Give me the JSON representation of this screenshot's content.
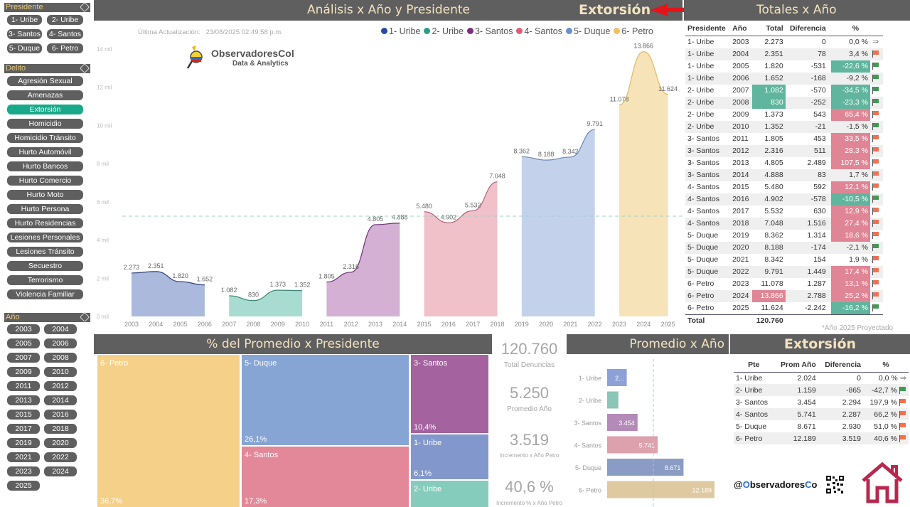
{
  "sidebar": {
    "presidente": {
      "title": "Presidente",
      "options": [
        "1- Uribe",
        "2- Uribe",
        "3- Santos",
        "4- Santos",
        "5- Duque",
        "6- Petro"
      ]
    },
    "delito": {
      "title": "Delito",
      "selected": "Extorsión",
      "options": [
        "Agresión Sexual",
        "Amenazas",
        "Extorsión",
        "Homicidio",
        "Homicidio Tránsito",
        "Hurto Automóvil",
        "Hurto Bancos",
        "Hurto Comercio",
        "Hurto Moto",
        "Hurto Persona",
        "Hurto Residencias",
        "Lesiones Personales",
        "Lesiones Tránsito",
        "Secuestro",
        "Terrorismo",
        "Violencia Familiar"
      ]
    },
    "anio": {
      "title": "Año",
      "options": [
        "2003",
        "2004",
        "2005",
        "2006",
        "2007",
        "2008",
        "2009",
        "2010",
        "2011",
        "2012",
        "2013",
        "2014",
        "2015",
        "2016",
        "2017",
        "2018",
        "2019",
        "2020",
        "2021",
        "2022",
        "2023",
        "2024",
        "2025"
      ]
    }
  },
  "header": {
    "title": "Análisis x Año y Presidente",
    "crime": "Extorsión",
    "totals_title": "Totales x Año"
  },
  "update": {
    "label": "Última Actualización:",
    "value": "23/08/2025 02:49:58 p.m."
  },
  "logo": {
    "name": "ObservadoresCol",
    "tagline": "Data & Analytics"
  },
  "colors": {
    "1- Uribe": "#2b4a9e",
    "2- Uribe": "#2a9d87",
    "3- Santos": "#7c2f82",
    "4- Santos": "#e05d75",
    "5- Duque": "#6a8fd0",
    "6- Petro": "#f0c060",
    "highlight_green": "#5fb59d",
    "highlight_red": "#e08595",
    "header_bg": "#5f5f5f",
    "header_text": "#f3e3bf",
    "selected_pill": "#1aa88a"
  },
  "chart_data": [
    {
      "type": "area",
      "title": "Análisis x Año y Presidente",
      "xlabel": "",
      "ylabel": "",
      "y_ticks": [
        "0 mil",
        "2 mil",
        "4 mil",
        "6 mil",
        "8 mil",
        "10 mil",
        "12 mil",
        "14 mil"
      ],
      "ylim": [
        0,
        14000
      ],
      "average_line": 5250,
      "legend": [
        "1- Uribe",
        "2- Uribe",
        "3- Santos",
        "4- Santos",
        "5- Duque",
        "6- Petro"
      ],
      "legend_position": "top-right",
      "x": [
        "2003",
        "2004",
        "2005",
        "2006",
        "2007",
        "2008",
        "2009",
        "2010",
        "2011",
        "2012",
        "2013",
        "2014",
        "2015",
        "2016",
        "2017",
        "2018",
        "2019",
        "2020",
        "2021",
        "2022",
        "2023",
        "2024",
        "2025"
      ],
      "series": [
        {
          "name": "1- Uribe",
          "x": [
            "2003",
            "2004",
            "2005",
            "2006"
          ],
          "values": [
            2273,
            2351,
            1820,
            1652
          ],
          "labels": [
            "2.273",
            "2.351",
            "1.820",
            "1.652"
          ]
        },
        {
          "name": "2- Uribe",
          "x": [
            "2007",
            "2008",
            "2009",
            "2010"
          ],
          "values": [
            1082,
            830,
            1373,
            1352
          ],
          "labels": [
            "1.082",
            "830",
            "1.373",
            "1.352"
          ]
        },
        {
          "name": "3- Santos",
          "x": [
            "2011",
            "2012",
            "2013",
            "2014"
          ],
          "values": [
            1805,
            2316,
            4805,
            4888
          ],
          "labels": [
            "1.805",
            "2.316",
            "4.805",
            "4.888"
          ]
        },
        {
          "name": "4- Santos",
          "x": [
            "2015",
            "2016",
            "2017",
            "2018"
          ],
          "values": [
            5480,
            4902,
            5532,
            7048
          ],
          "labels": [
            "5.480",
            "4.902",
            "5.532",
            "7.048"
          ]
        },
        {
          "name": "5- Duque",
          "x": [
            "2019",
            "2020",
            "2021",
            "2022"
          ],
          "values": [
            8362,
            8188,
            8342,
            9791
          ],
          "labels": [
            "8.362",
            "8.188",
            "8.342",
            "9.791"
          ]
        },
        {
          "name": "6- Petro",
          "x": [
            "2023",
            "2024",
            "2025"
          ],
          "values": [
            11078,
            13866,
            11624
          ],
          "labels": [
            "11.078",
            "13.866",
            "11.624"
          ]
        }
      ]
    },
    {
      "type": "treemap",
      "title": "% del Promedio x Presidente",
      "categories": [
        "6- Petro",
        "5- Duque",
        "4- Santos",
        "3- Santos",
        "1- Uribe",
        "2- Uribe"
      ],
      "values": [
        36.7,
        26.1,
        17.3,
        10.4,
        6.1,
        3.4
      ],
      "labels": [
        "36,7%",
        "26,1%",
        "17,3%",
        "10,4%",
        "6,1%",
        ""
      ]
    },
    {
      "type": "bar",
      "orientation": "horizontal",
      "title": "Promedio x Año",
      "categories": [
        "1- Uribe",
        "2- Uribe",
        "3- Santos",
        "4- Santos",
        "5- Duque",
        "6- Petro"
      ],
      "values": [
        2024,
        1159,
        3454,
        5741,
        8671,
        12189
      ],
      "labels": [
        "2...",
        "",
        "3.454",
        "5.741",
        "8.671",
        "12.189"
      ],
      "average_line": 5250,
      "xlim": [
        0,
        14000
      ]
    }
  ],
  "totals_table": {
    "headers": [
      "Presidente",
      "Año",
      "Total",
      "Diferencia",
      "%"
    ],
    "rows": [
      {
        "p": "1- Uribe",
        "y": "2003",
        "t": "2.273",
        "d": "0",
        "pct": "0,0 %",
        "icon": "arrow",
        "pc": "",
        "tc": ""
      },
      {
        "p": "1- Uribe",
        "y": "2004",
        "t": "2.351",
        "d": "78",
        "pct": "3,4 %",
        "icon": "red",
        "pc": "",
        "tc": ""
      },
      {
        "p": "1- Uribe",
        "y": "2005",
        "t": "1.820",
        "d": "-531",
        "pct": "-22,6 %",
        "icon": "green",
        "pc": "g",
        "tc": ""
      },
      {
        "p": "1- Uribe",
        "y": "2006",
        "t": "1.652",
        "d": "-168",
        "pct": "-9,2 %",
        "icon": "green",
        "pc": "",
        "tc": ""
      },
      {
        "p": "2- Uribe",
        "y": "2007",
        "t": "1.082",
        "d": "-570",
        "pct": "-34,5 %",
        "icon": "green",
        "pc": "g",
        "tc": "g"
      },
      {
        "p": "2- Uribe",
        "y": "2008",
        "t": "830",
        "d": "-252",
        "pct": "-23,3 %",
        "icon": "green",
        "pc": "g",
        "tc": "g"
      },
      {
        "p": "2- Uribe",
        "y": "2009",
        "t": "1.373",
        "d": "543",
        "pct": "65,4 %",
        "icon": "red",
        "pc": "r",
        "tc": ""
      },
      {
        "p": "2- Uribe",
        "y": "2010",
        "t": "1.352",
        "d": "-21",
        "pct": "-1,5 %",
        "icon": "green",
        "pc": "",
        "tc": ""
      },
      {
        "p": "3- Santos",
        "y": "2011",
        "t": "1.805",
        "d": "453",
        "pct": "33,5 %",
        "icon": "red",
        "pc": "r",
        "tc": ""
      },
      {
        "p": "3- Santos",
        "y": "2012",
        "t": "2.316",
        "d": "511",
        "pct": "28,3 %",
        "icon": "red",
        "pc": "r",
        "tc": ""
      },
      {
        "p": "3- Santos",
        "y": "2013",
        "t": "4.805",
        "d": "2.489",
        "pct": "107,5 %",
        "icon": "red",
        "pc": "r",
        "tc": ""
      },
      {
        "p": "3- Santos",
        "y": "2014",
        "t": "4.888",
        "d": "83",
        "pct": "1,7 %",
        "icon": "red",
        "pc": "",
        "tc": ""
      },
      {
        "p": "4- Santos",
        "y": "2015",
        "t": "5.480",
        "d": "592",
        "pct": "12,1 %",
        "icon": "red",
        "pc": "r",
        "tc": ""
      },
      {
        "p": "4- Santos",
        "y": "2016",
        "t": "4.902",
        "d": "-578",
        "pct": "-10,5 %",
        "icon": "green",
        "pc": "g",
        "tc": ""
      },
      {
        "p": "4- Santos",
        "y": "2017",
        "t": "5.532",
        "d": "630",
        "pct": "12,9 %",
        "icon": "red",
        "pc": "r",
        "tc": ""
      },
      {
        "p": "4- Santos",
        "y": "2018",
        "t": "7.048",
        "d": "1.516",
        "pct": "27,4 %",
        "icon": "red",
        "pc": "r",
        "tc": ""
      },
      {
        "p": "5- Duque",
        "y": "2019",
        "t": "8.362",
        "d": "1.314",
        "pct": "18,6 %",
        "icon": "red",
        "pc": "r",
        "tc": ""
      },
      {
        "p": "5- Duque",
        "y": "2020",
        "t": "8.188",
        "d": "-174",
        "pct": "-2,1 %",
        "icon": "green",
        "pc": "",
        "tc": ""
      },
      {
        "p": "5- Duque",
        "y": "2021",
        "t": "8.342",
        "d": "154",
        "pct": "1,9 %",
        "icon": "red",
        "pc": "",
        "tc": ""
      },
      {
        "p": "5- Duque",
        "y": "2022",
        "t": "9.791",
        "d": "1.449",
        "pct": "17,4 %",
        "icon": "red",
        "pc": "r",
        "tc": ""
      },
      {
        "p": "6- Petro",
        "y": "2023",
        "t": "11.078",
        "d": "1.287",
        "pct": "13,1 %",
        "icon": "red",
        "pc": "r",
        "tc": ""
      },
      {
        "p": "6- Petro",
        "y": "2024",
        "t": "13.866",
        "d": "2.788",
        "pct": "25,2 %",
        "icon": "red",
        "pc": "r",
        "tc": "r"
      },
      {
        "p": "6- Petro",
        "y": "2025",
        "t": "11.624",
        "d": "-2.242",
        "pct": "-16,2 %",
        "icon": "green",
        "pc": "g",
        "tc": ""
      }
    ],
    "total_label": "Total",
    "total_value": "120.760",
    "footnote": "*Año 2025 Proyectado"
  },
  "kpis": [
    {
      "value": "120.760",
      "label": "Total Denuncias"
    },
    {
      "value": "5.250",
      "label": "Promedio Año"
    },
    {
      "value": "3.519",
      "label": "Incremento x Año Petro"
    },
    {
      "value": "40,6 %",
      "label": "Incremento % x Año Petro"
    }
  ],
  "treemap_title": "% del Promedio x Presidente",
  "promedio_title": "Promedio x Año",
  "summary": {
    "title": "Extorsión",
    "headers": [
      "Pte",
      "Prom Año",
      "Diferencia",
      "%"
    ],
    "rows": [
      {
        "p": "1- Uribe",
        "a": "2.024",
        "d": "0",
        "pct": "0,0 %",
        "icon": "arrow"
      },
      {
        "p": "2- Uribe",
        "a": "1.159",
        "d": "-865",
        "pct": "-42,7 %",
        "icon": "green"
      },
      {
        "p": "3- Santos",
        "a": "3.454",
        "d": "2.294",
        "pct": "197,9 %",
        "icon": "red"
      },
      {
        "p": "4- Santos",
        "a": "5.741",
        "d": "2.287",
        "pct": "66,2 %",
        "icon": "red"
      },
      {
        "p": "5- Duque",
        "a": "8.671",
        "d": "2.930",
        "pct": "51,0 %",
        "icon": "red"
      },
      {
        "p": "6- Petro",
        "a": "12.189",
        "d": "3.519",
        "pct": "40,6 %",
        "icon": "red"
      }
    ]
  },
  "footer": {
    "handle_prefix": "@",
    "handle_o": "O",
    "handle_mid": "bservadores",
    "handle_c": "C",
    "handle_end": "o"
  }
}
